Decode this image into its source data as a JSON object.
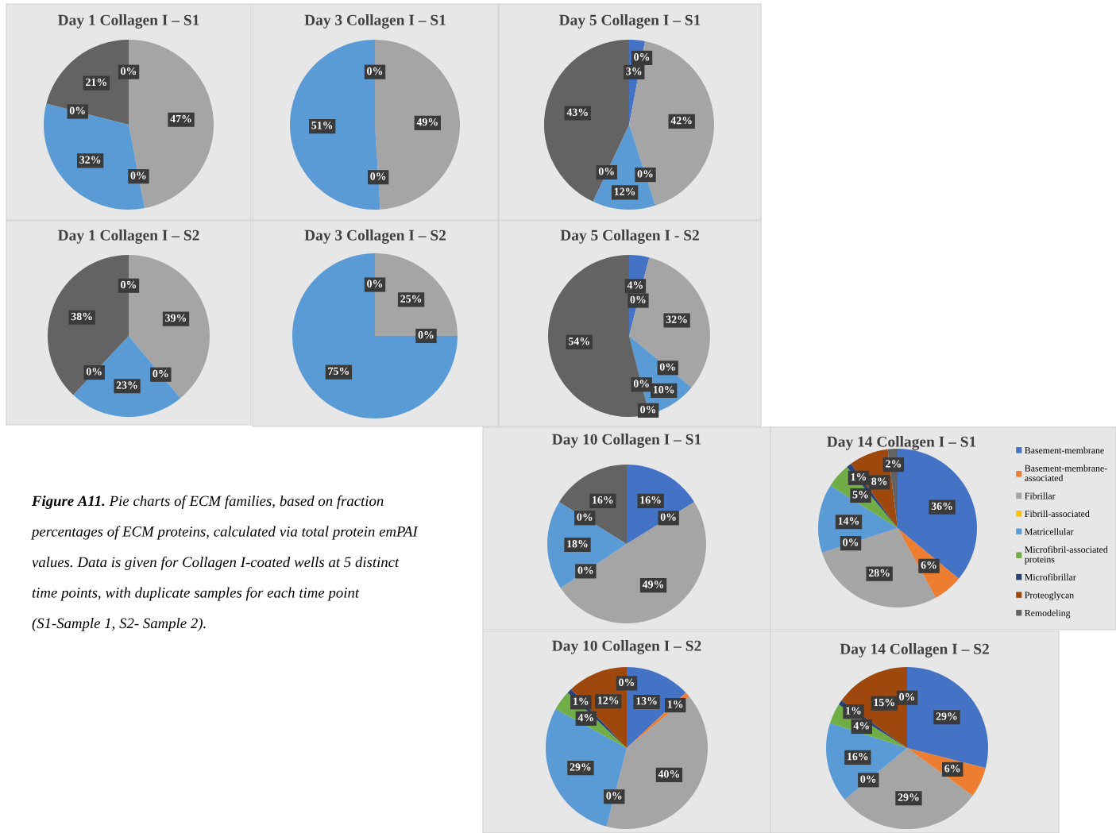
{
  "chart_data": [
    {
      "type": "pie",
      "title": "Day 1 Collagen I – S1",
      "categories": [
        null,
        null,
        null,
        null,
        null,
        null,
        null,
        null,
        null
      ],
      "colors": [
        "#4472c4",
        "#ed7d31",
        "#a5a5a5",
        "#ffc000",
        "#5b9bd5",
        "#70ad47",
        "#264478",
        "#9e480e",
        "#636363"
      ],
      "values": [
        0,
        0,
        47,
        0,
        32,
        0,
        0,
        0,
        21
      ],
      "value_labels": [
        "0%",
        null,
        "47%",
        "0%",
        "32%",
        "0%",
        null,
        null,
        "21%"
      ]
    },
    {
      "type": "pie",
      "title": "Day 3 Collagen I – S1",
      "categories": [
        null,
        null,
        null,
        null,
        null,
        null,
        null,
        null,
        null
      ],
      "colors": [
        "#4472c4",
        "#ed7d31",
        "#a5a5a5",
        "#ffc000",
        "#5b9bd5",
        "#70ad47",
        "#264478",
        "#9e480e",
        "#636363"
      ],
      "values": [
        0,
        0,
        49,
        0,
        51,
        0,
        0,
        0,
        0
      ],
      "value_labels": [
        "0%",
        null,
        "49%",
        "0%",
        "51%",
        null,
        null,
        null,
        null
      ]
    },
    {
      "type": "pie",
      "title": "Day 5 Collagen I – S1",
      "categories": [
        null,
        null,
        null,
        null,
        null,
        null,
        null,
        null,
        null
      ],
      "colors": [
        "#4472c4",
        "#ed7d31",
        "#a5a5a5",
        "#ffc000",
        "#5b9bd5",
        "#70ad47",
        "#264478",
        "#9e480e",
        "#636363"
      ],
      "values": [
        3,
        0,
        42,
        0,
        12,
        0,
        0,
        0,
        43
      ],
      "value_labels": [
        "3%",
        "0%",
        "42%",
        "0%",
        "12%",
        "0%",
        null,
        null,
        "43%"
      ]
    },
    {
      "type": "pie",
      "title": "Day 1 Collagen I – S2",
      "categories": [
        null,
        null,
        null,
        null,
        null,
        null,
        null,
        null,
        null
      ],
      "colors": [
        "#4472c4",
        "#ed7d31",
        "#a5a5a5",
        "#ffc000",
        "#5b9bd5",
        "#70ad47",
        "#264478",
        "#9e480e",
        "#636363"
      ],
      "values": [
        0,
        0,
        39,
        0,
        23,
        0,
        0,
        0,
        38
      ],
      "value_labels": [
        "0%",
        null,
        "39%",
        "0%",
        "23%",
        "0%",
        null,
        null,
        "38%"
      ]
    },
    {
      "type": "pie",
      "title": "Day 3 Collagen I – S2",
      "categories": [
        null,
        null,
        null,
        null,
        null,
        null,
        null,
        null,
        null
      ],
      "colors": [
        "#4472c4",
        "#ed7d31",
        "#a5a5a5",
        "#ffc000",
        "#5b9bd5",
        "#70ad47",
        "#264478",
        "#9e480e",
        "#636363"
      ],
      "values": [
        0,
        0,
        25,
        0,
        75,
        0,
        0,
        0,
        0
      ],
      "value_labels": [
        "0%",
        null,
        "25%",
        "0%",
        "75%",
        null,
        null,
        null,
        null
      ]
    },
    {
      "type": "pie",
      "title": "Day 5 Collagen I - S2",
      "categories": [
        null,
        null,
        null,
        null,
        null,
        null,
        null,
        null,
        null
      ],
      "colors": [
        "#4472c4",
        "#ed7d31",
        "#a5a5a5",
        "#ffc000",
        "#5b9bd5",
        "#70ad47",
        "#264478",
        "#9e480e",
        "#636363"
      ],
      "values": [
        4,
        0,
        32,
        0,
        10,
        0,
        0,
        0,
        54
      ],
      "value_labels": [
        "4%",
        "0%",
        "32%",
        "0%",
        "10%",
        "0%",
        "0%",
        null,
        "54%"
      ]
    },
    {
      "type": "pie",
      "title": "Day 10 Collagen I – S1",
      "categories": [
        null,
        null,
        null,
        null,
        null,
        null,
        null,
        null,
        null
      ],
      "colors": [
        "#4472c4",
        "#ed7d31",
        "#a5a5a5",
        "#ffc000",
        "#5b9bd5",
        "#70ad47",
        "#264478",
        "#9e480e",
        "#636363"
      ],
      "values": [
        16,
        0,
        49,
        0,
        18,
        0,
        0,
        0,
        16
      ],
      "value_labels": [
        "16%",
        "0%",
        "49%",
        "0%",
        "18%",
        null,
        "0%",
        null,
        "16%"
      ]
    },
    {
      "type": "pie",
      "title": "Day 14 Collagen I – S1",
      "legend": "right",
      "categories": [
        "Basement-membrane",
        "Basement-membrane-associated",
        "Fibrillar",
        "Fibrill-associated",
        "Matricellular",
        "Microfibril-associated proteins",
        "Microfibrillar",
        "Proteoglycan",
        "Remodeling"
      ],
      "colors": [
        "#4472c4",
        "#ed7d31",
        "#a5a5a5",
        "#ffc000",
        "#5b9bd5",
        "#70ad47",
        "#264478",
        "#9e480e",
        "#636363"
      ],
      "values": [
        36,
        6,
        28,
        0,
        14,
        5,
        1,
        8,
        2
      ],
      "value_labels": [
        "36%",
        "6%",
        "28%",
        "0%",
        "14%",
        "5%",
        "1%",
        "8%",
        "2%"
      ]
    },
    {
      "type": "pie",
      "title": "Day 10 Collagen I – S2",
      "categories": [
        null,
        null,
        null,
        null,
        null,
        null,
        null,
        null,
        null
      ],
      "colors": [
        "#4472c4",
        "#ed7d31",
        "#a5a5a5",
        "#ffc000",
        "#5b9bd5",
        "#70ad47",
        "#264478",
        "#9e480e",
        "#636363"
      ],
      "values": [
        13,
        1,
        40,
        0,
        29,
        4,
        1,
        12,
        0
      ],
      "value_labels": [
        "13%",
        "1%",
        "40%",
        "0%",
        "29%",
        "4%",
        "1%",
        "12%",
        "0%"
      ]
    },
    {
      "type": "pie",
      "title": "Day 14 Collagen I – S2",
      "categories": [
        null,
        null,
        null,
        null,
        null,
        null,
        null,
        null,
        null
      ],
      "colors": [
        "#4472c4",
        "#ed7d31",
        "#a5a5a5",
        "#ffc000",
        "#5b9bd5",
        "#70ad47",
        "#264478",
        "#9e480e",
        "#636363"
      ],
      "values": [
        29,
        6,
        29,
        0,
        16,
        4,
        1,
        15,
        0
      ],
      "value_labels": [
        "29%",
        "6%",
        "29%",
        "0%",
        "16%",
        "4%",
        "1%",
        "15%",
        "0%"
      ]
    },
    {
      "type": "other",
      "annotations": [
        "Figure A11.",
        "Pie charts of ECM families, based on fraction percentages of ECM proteins, calculated via total protein emPAI values. Data is given for Collagen I-coated wells at 5 distinct time points, with duplicate samples for each time point (S1-Sample 1, S2- Sample 2)."
      ]
    }
  ]
}
